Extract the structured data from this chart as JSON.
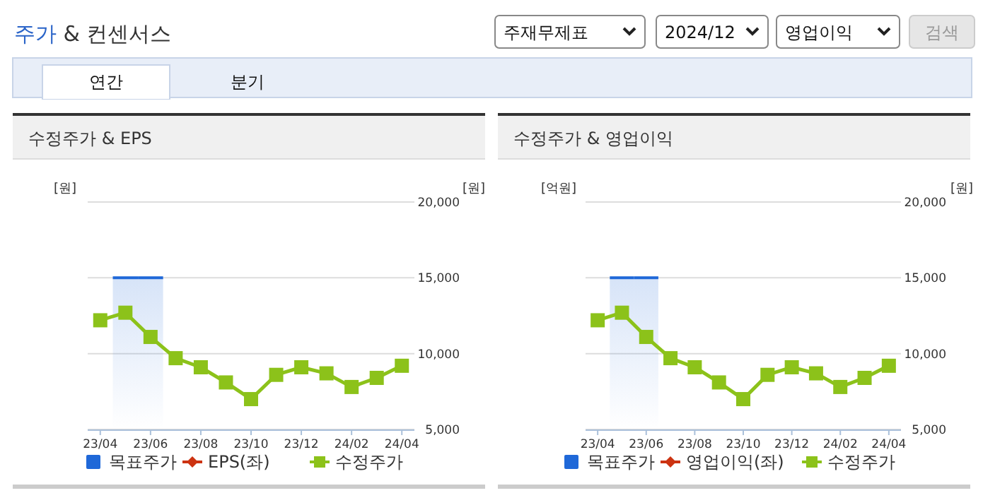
{
  "chart_data": [
    {
      "type": "other",
      "title": "주가 & 컨센서스",
      "annotations": [
        "주재무제표",
        "2024/12",
        "영업이익",
        "검색",
        "연간",
        "분기"
      ]
    },
    {
      "type": "line",
      "title": "수정주가 & EPS",
      "ylabel": "[원]",
      "y2label": "[원]",
      "categories": [
        "23/04",
        null,
        "23/06",
        null,
        "23/08",
        null,
        "23/10",
        null,
        "23/12",
        null,
        "24/02",
        null,
        "24/04"
      ],
      "series": [
        {
          "name": "목표주가",
          "type": "bar",
          "axis": "y2",
          "color": "#1f68d8",
          "values": [
            null,
            15000,
            15000,
            null,
            null,
            null,
            null,
            null,
            null,
            null,
            null,
            null,
            null
          ]
        },
        {
          "name": "EPS(좌)",
          "type": "line",
          "axis": "y",
          "color": "#cc3311",
          "marker": "diamond",
          "values": [
            null,
            null,
            null,
            null,
            null,
            null,
            null,
            null,
            null,
            null,
            null,
            null,
            null
          ]
        },
        {
          "name": "수정주가",
          "type": "line",
          "axis": "y2",
          "color": "#8cc21a",
          "marker": "square",
          "values": [
            12200,
            12700,
            11100,
            9700,
            9100,
            8100,
            7000,
            8600,
            9100,
            8700,
            7800,
            8400,
            9200
          ]
        }
      ],
      "y2lim": [
        5000,
        20000
      ],
      "y2ticks": [
        {
          "value": 5000,
          "label": "5,000"
        },
        {
          "value": 10000,
          "label": "10,000"
        },
        {
          "value": 15000,
          "label": "15,000"
        },
        {
          "value": 20000,
          "label": "20,000"
        }
      ],
      "grid": "y",
      "legend": "bottom"
    },
    {
      "type": "line",
      "title": "수정주가 & 영업이익",
      "ylabel": "[억원]",
      "y2label": "[원]",
      "categories": [
        "23/04",
        null,
        "23/06",
        null,
        "23/08",
        null,
        "23/10",
        null,
        "23/12",
        null,
        "24/02",
        null,
        "24/04"
      ],
      "series": [
        {
          "name": "목표주가",
          "type": "bar",
          "axis": "y2",
          "color": "#1f68d8",
          "values": [
            null,
            15000,
            15000,
            null,
            null,
            null,
            null,
            null,
            null,
            null,
            null,
            null,
            null
          ]
        },
        {
          "name": "영업이익(좌)",
          "type": "line",
          "axis": "y",
          "color": "#cc3311",
          "marker": "diamond",
          "values": [
            null,
            null,
            null,
            null,
            null,
            null,
            null,
            null,
            null,
            null,
            null,
            null,
            null
          ]
        },
        {
          "name": "수정주가",
          "type": "line",
          "axis": "y2",
          "color": "#8cc21a",
          "marker": "square",
          "values": [
            12200,
            12700,
            11100,
            9700,
            9100,
            8100,
            7000,
            8600,
            9100,
            8700,
            7800,
            8400,
            9200
          ]
        }
      ],
      "y2lim": [
        5000,
        20000
      ],
      "y2ticks": [
        {
          "value": 5000,
          "label": "5,000"
        },
        {
          "value": 10000,
          "label": "10,000"
        },
        {
          "value": 15000,
          "label": "15,000"
        },
        {
          "value": 20000,
          "label": "20,000"
        }
      ],
      "grid": "y",
      "legend": "bottom"
    }
  ]
}
